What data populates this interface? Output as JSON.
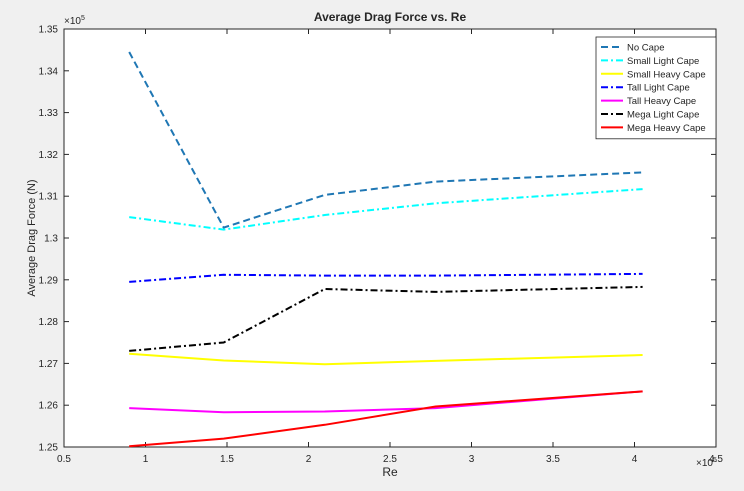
{
  "chart_data": {
    "type": "line",
    "title": "Average Drag Force vs. Re",
    "xlabel": "Re",
    "ylabel": "Average Drag Force (N)",
    "x_exponent_label": "×10",
    "x_exponent_power": "5",
    "y_exponent_label": "×10",
    "y_exponent_power": "5",
    "xlim": [
      0.5,
      4.5
    ],
    "ylim": [
      1.25,
      1.35
    ],
    "x_ticks": [
      0.5,
      1,
      1.5,
      2,
      2.5,
      3,
      3.5,
      4,
      4.5
    ],
    "x_tick_labels": [
      "0.5",
      "1",
      "1.5",
      "2",
      "2.5",
      "3",
      "3.5",
      "4",
      "4.5"
    ],
    "y_ticks": [
      1.25,
      1.26,
      1.27,
      1.28,
      1.29,
      1.3,
      1.31,
      1.32,
      1.33,
      1.34,
      1.35
    ],
    "y_tick_labels": [
      "1.25",
      "1.26",
      "1.27",
      "1.28",
      "1.29",
      "1.3",
      "1.31",
      "1.32",
      "1.33",
      "1.34",
      "1.35"
    ],
    "grid": false,
    "legend_position": "top-right",
    "x": [
      0.9,
      1.48,
      2.1,
      2.78,
      4.05
    ],
    "series": [
      {
        "name": "No Cape",
        "color": "#1f77b4",
        "dash": "dash",
        "values": [
          1.3445,
          1.3025,
          1.3103,
          1.3135,
          1.3157
        ]
      },
      {
        "name": "Small Light Cape",
        "color": "#00ffff",
        "dash": "dashdot",
        "values": [
          1.305,
          1.302,
          1.3055,
          1.3083,
          1.3117
        ]
      },
      {
        "name": "Small Heavy Cape",
        "color": "#ffff00",
        "dash": "solid",
        "values": [
          1.2723,
          1.2707,
          1.2698,
          1.2706,
          1.272
        ]
      },
      {
        "name": "Tall Light Cape",
        "color": "#0000ff",
        "dash": "dashdot",
        "values": [
          1.2895,
          1.2912,
          1.291,
          1.291,
          1.2914
        ]
      },
      {
        "name": "Tall Heavy Cape",
        "color": "#ff00ff",
        "dash": "solid",
        "values": [
          1.2593,
          1.2583,
          1.2585,
          1.2593,
          1.2633
        ]
      },
      {
        "name": "Mega Light Cape",
        "color": "#000000",
        "dash": "dashdot",
        "values": [
          1.273,
          1.275,
          1.2878,
          1.2871,
          1.2883
        ]
      },
      {
        "name": "Mega Heavy Cape",
        "color": "#ff0000",
        "dash": "solid",
        "values": [
          1.2502,
          1.252,
          1.2553,
          1.2597,
          1.2633
        ]
      }
    ]
  }
}
